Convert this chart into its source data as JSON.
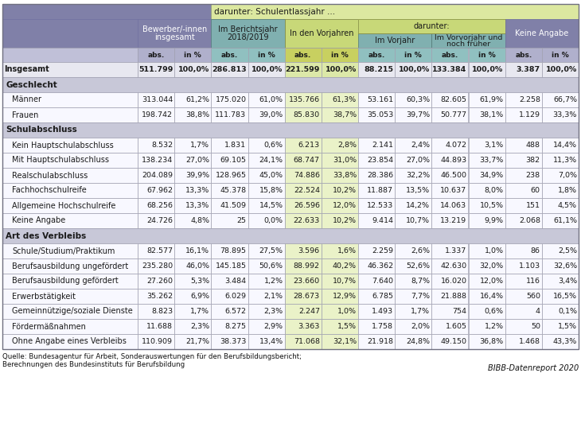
{
  "footer": "Quelle: Bundesagentur für Arbeit, Sonderauswertungen für den Berufsbildungsbericht;\nBerechnungen des Bundesinstituts für Berufsbildung",
  "footer_right": "BIBB-Datenreport 2020",
  "colors": {
    "purple": "#8080a8",
    "teal": "#80b0b0",
    "green_hdr": "#c8d878",
    "green_hdr_light": "#d8e898",
    "section_bg": "#c8c8d8",
    "data_bg": "#f0f0f8",
    "green_data": "#e4ecb8",
    "green_data_dark": "#c8d878",
    "border": "#a0a0b0",
    "white": "#ffffff"
  },
  "rows": [
    {
      "label": "Insgesamt",
      "bold": true,
      "section": false,
      "indent": false,
      "data": [
        "511.799",
        "100,0%",
        "286.813",
        "100,0%",
        "221.599",
        "100,0%",
        "88.215",
        "100,0%",
        "133.384",
        "100,0%",
        "3.387",
        "100,0%"
      ]
    },
    {
      "label": "Geschlecht",
      "bold": true,
      "section": true,
      "indent": false,
      "data": []
    },
    {
      "label": "Männer",
      "bold": false,
      "section": false,
      "indent": true,
      "data": [
        "313.044",
        "61,2%",
        "175.020",
        "61,0%",
        "135.766",
        "61,3%",
        "53.161",
        "60,3%",
        "82.605",
        "61,9%",
        "2.258",
        "66,7%"
      ]
    },
    {
      "label": "Frauen",
      "bold": false,
      "section": false,
      "indent": true,
      "data": [
        "198.742",
        "38,8%",
        "111.783",
        "39,0%",
        "85.830",
        "38,7%",
        "35.053",
        "39,7%",
        "50.777",
        "38,1%",
        "1.129",
        "33,3%"
      ]
    },
    {
      "label": "Schulabschluss",
      "bold": true,
      "section": true,
      "indent": false,
      "data": []
    },
    {
      "label": "Kein Hauptschulabschluss",
      "bold": false,
      "section": false,
      "indent": true,
      "data": [
        "8.532",
        "1,7%",
        "1.831",
        "0,6%",
        "6.213",
        "2,8%",
        "2.141",
        "2,4%",
        "4.072",
        "3,1%",
        "488",
        "14,4%"
      ]
    },
    {
      "label": "Mit Hauptschulabschluss",
      "bold": false,
      "section": false,
      "indent": true,
      "data": [
        "138.234",
        "27,0%",
        "69.105",
        "24,1%",
        "68.747",
        "31,0%",
        "23.854",
        "27,0%",
        "44.893",
        "33,7%",
        "382",
        "11,3%"
      ]
    },
    {
      "label": "Realschulabschluss",
      "bold": false,
      "section": false,
      "indent": true,
      "data": [
        "204.089",
        "39,9%",
        "128.965",
        "45,0%",
        "74.886",
        "33,8%",
        "28.386",
        "32,2%",
        "46.500",
        "34,9%",
        "238",
        "7,0%"
      ]
    },
    {
      "label": "Fachhochschulreife",
      "bold": false,
      "section": false,
      "indent": true,
      "data": [
        "67.962",
        "13,3%",
        "45.378",
        "15,8%",
        "22.524",
        "10,2%",
        "11.887",
        "13,5%",
        "10.637",
        "8,0%",
        "60",
        "1,8%"
      ]
    },
    {
      "label": "Allgemeine Hochschulreife",
      "bold": false,
      "section": false,
      "indent": true,
      "data": [
        "68.256",
        "13,3%",
        "41.509",
        "14,5%",
        "26.596",
        "12,0%",
        "12.533",
        "14,2%",
        "14.063",
        "10,5%",
        "151",
        "4,5%"
      ]
    },
    {
      "label": "Keine Angabe",
      "bold": false,
      "section": false,
      "indent": true,
      "data": [
        "24.726",
        "4,8%",
        "25",
        "0,0%",
        "22.633",
        "10,2%",
        "9.414",
        "10,7%",
        "13.219",
        "9,9%",
        "2.068",
        "61,1%"
      ]
    },
    {
      "label": "Art des Verbleibs",
      "bold": true,
      "section": true,
      "indent": false,
      "data": []
    },
    {
      "label": "Schule/Studium/Praktikum",
      "bold": false,
      "section": false,
      "indent": true,
      "data": [
        "82.577",
        "16,1%",
        "78.895",
        "27,5%",
        "3.596",
        "1,6%",
        "2.259",
        "2,6%",
        "1.337",
        "1,0%",
        "86",
        "2,5%"
      ]
    },
    {
      "label": "Berufsausbildung ungefördert",
      "bold": false,
      "section": false,
      "indent": true,
      "data": [
        "235.280",
        "46,0%",
        "145.185",
        "50,6%",
        "88.992",
        "40,2%",
        "46.362",
        "52,6%",
        "42.630",
        "32,0%",
        "1.103",
        "32,6%"
      ]
    },
    {
      "label": "Berufsausbildung gefördert",
      "bold": false,
      "section": false,
      "indent": true,
      "data": [
        "27.260",
        "5,3%",
        "3.484",
        "1,2%",
        "23.660",
        "10,7%",
        "7.640",
        "8,7%",
        "16.020",
        "12,0%",
        "116",
        "3,4%"
      ]
    },
    {
      "label": "Erwerbstätigkeit",
      "bold": false,
      "section": false,
      "indent": true,
      "data": [
        "35.262",
        "6,9%",
        "6.029",
        "2,1%",
        "28.673",
        "12,9%",
        "6.785",
        "7,7%",
        "21.888",
        "16,4%",
        "560",
        "16,5%"
      ]
    },
    {
      "label": "Gemeinnützige/soziale Dienste",
      "bold": false,
      "section": false,
      "indent": true,
      "data": [
        "8.823",
        "1,7%",
        "6.572",
        "2,3%",
        "2.247",
        "1,0%",
        "1.493",
        "1,7%",
        "754",
        "0,6%",
        "4",
        "0,1%"
      ]
    },
    {
      "label": "Fördermäßnahmen",
      "bold": false,
      "section": false,
      "indent": true,
      "data": [
        "11.688",
        "2,3%",
        "8.275",
        "2,9%",
        "3.363",
        "1,5%",
        "1.758",
        "2,0%",
        "1.605",
        "1,2%",
        "50",
        "1,5%"
      ]
    },
    {
      "label": "Ohne Angabe eines Verbleibs",
      "bold": false,
      "section": false,
      "indent": true,
      "data": [
        "110.909",
        "21,7%",
        "38.373",
        "13,4%",
        "71.068",
        "32,1%",
        "21.918",
        "24,8%",
        "49.150",
        "36,8%",
        "1.468",
        "43,3%"
      ]
    }
  ]
}
